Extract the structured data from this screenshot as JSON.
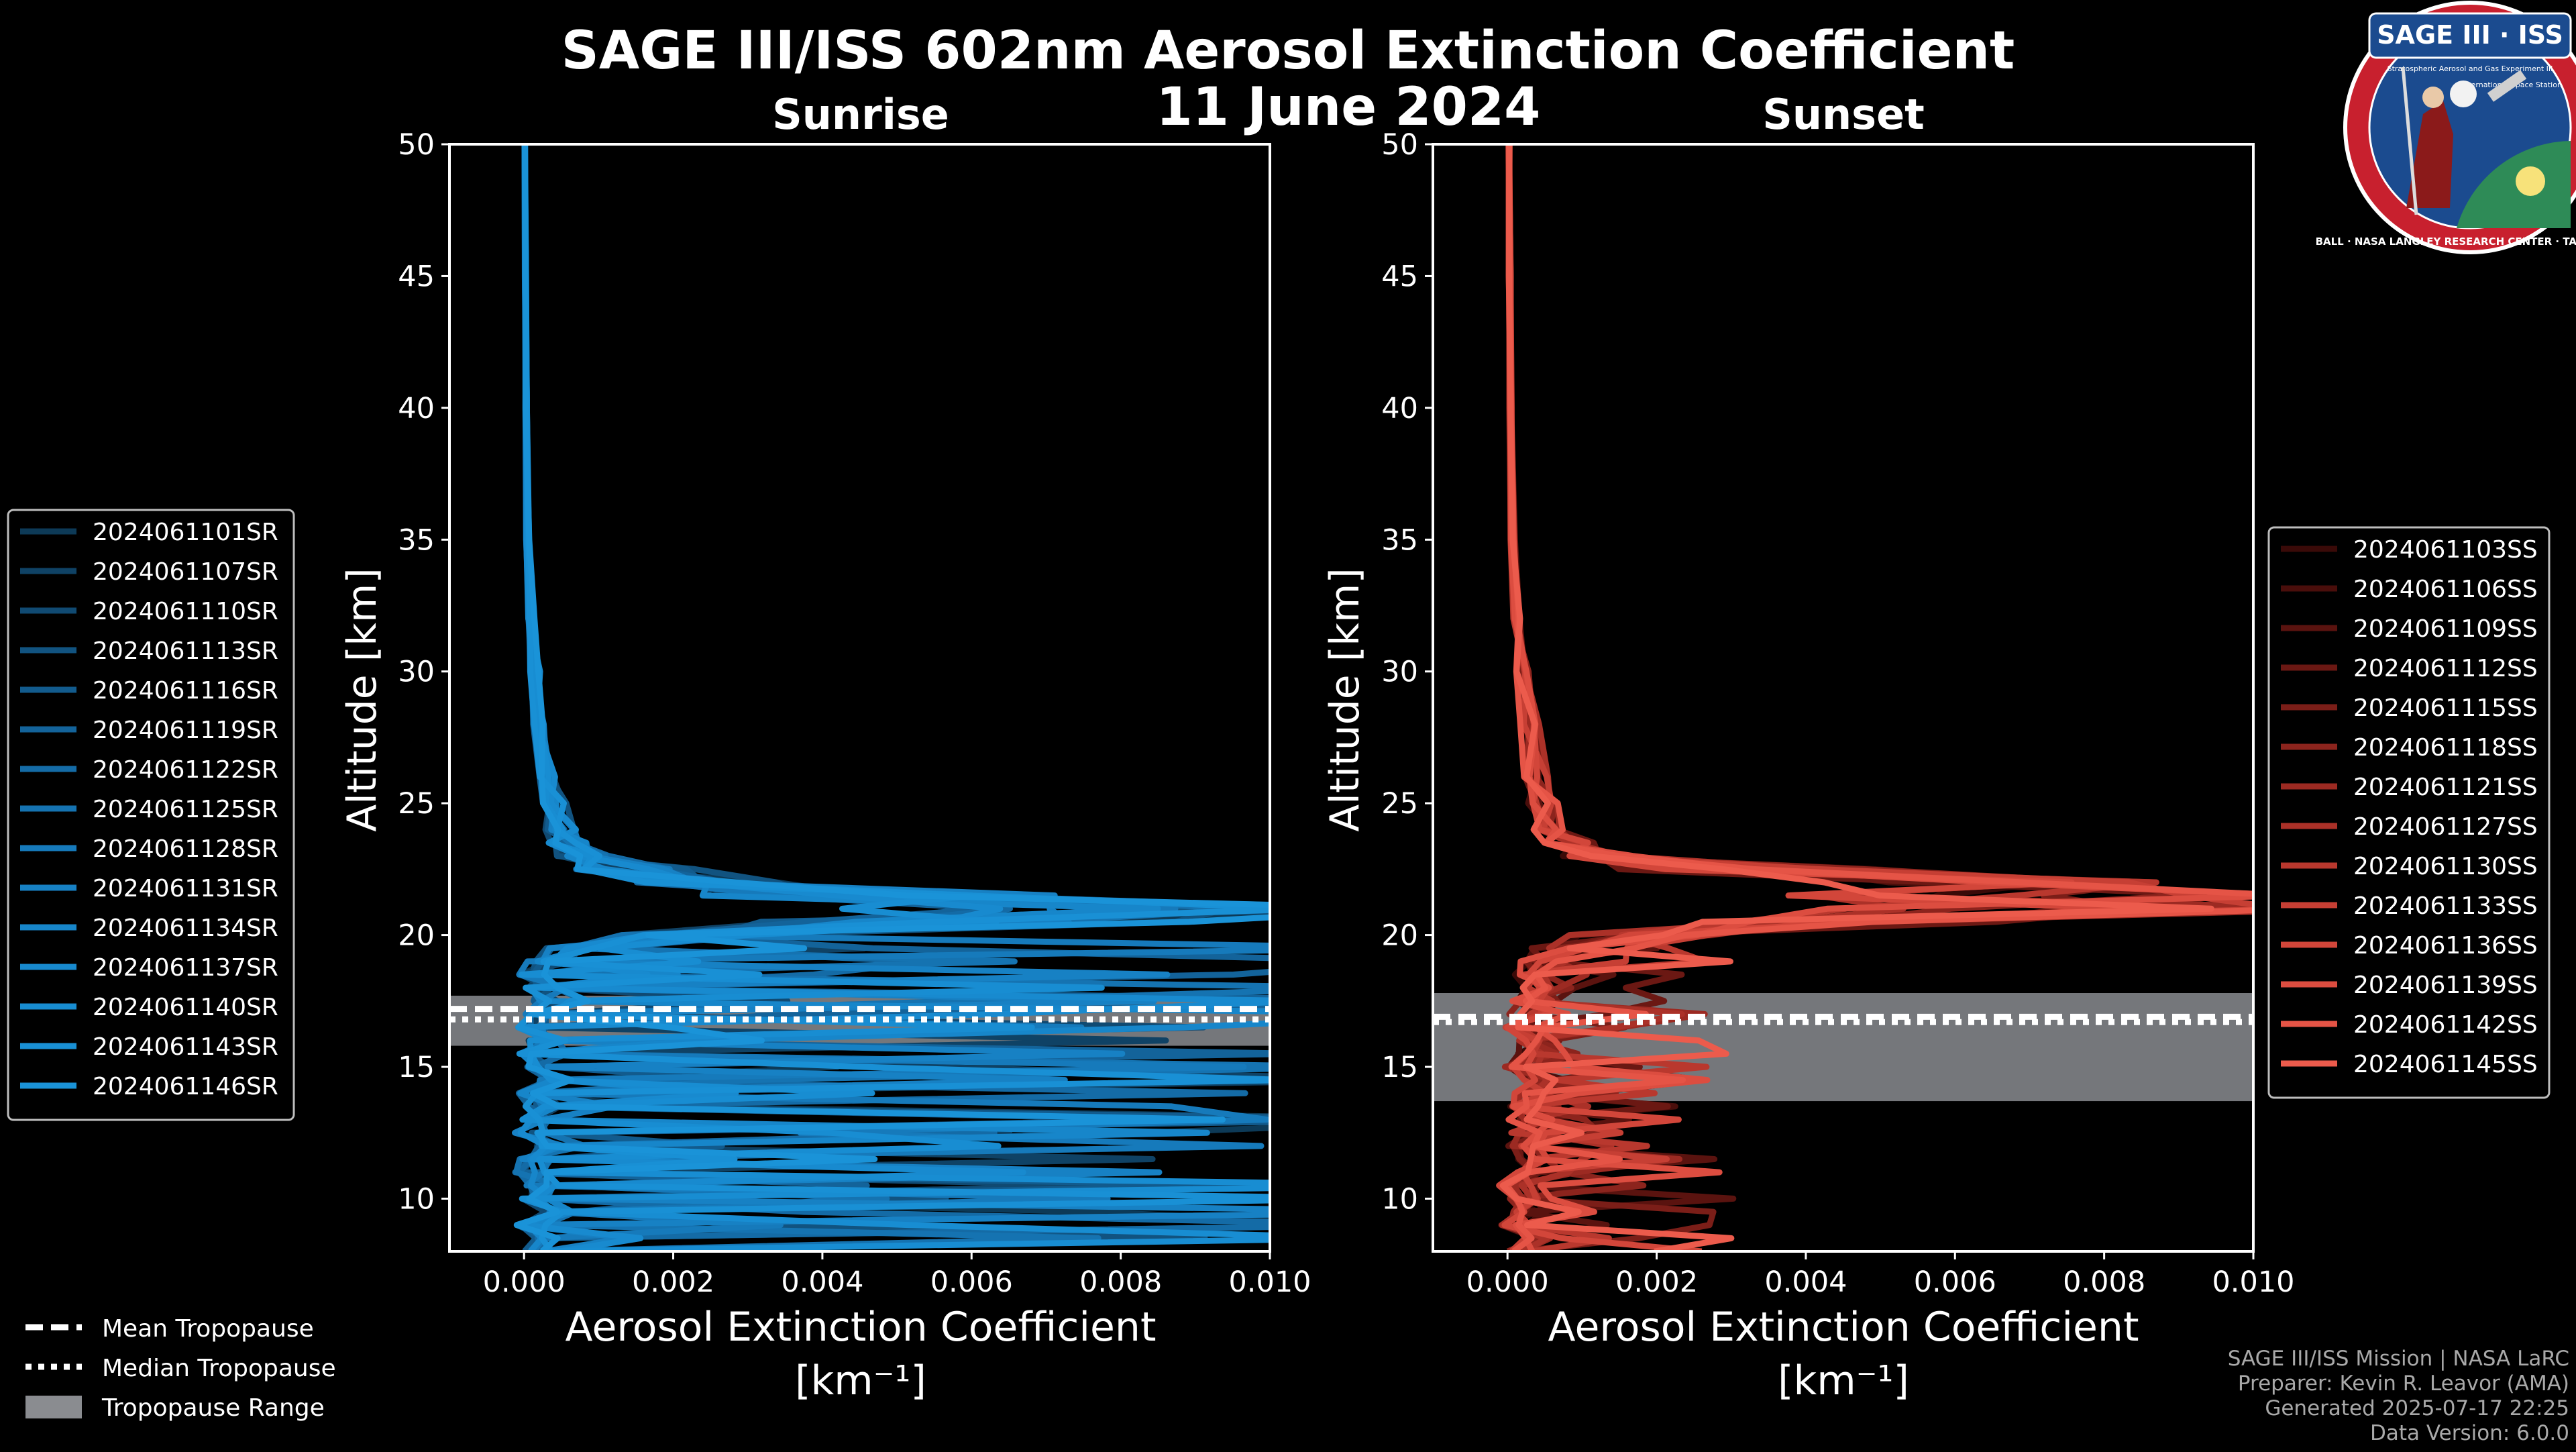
{
  "title": {
    "line1": "SAGE III/ISS 602nm Aerosol Extinction Coefficient",
    "line2": "11 June 2024"
  },
  "logo": {
    "label": "SAGE III · ISS",
    "ring_text": "BALL · NASA LANGLEY RESEARCH CENTER · TAS-I · ESA",
    "inner_text": [
      "Stratospheric Aerosol and Gas Experiment III",
      "International Space Station"
    ]
  },
  "credits": [
    "SAGE III/ISS Mission | NASA LaRC",
    "Preparer: Kevin R. Leavor (AMA)",
    "Generated 2025-07-17 22:25",
    "Data Version: 6.0.0"
  ],
  "tropopause_legend": [
    {
      "label": "Mean Tropopause",
      "style": "dashed"
    },
    {
      "label": "Median Tropopause",
      "style": "dotted"
    },
    {
      "label": "Tropopause Range",
      "style": "box"
    }
  ],
  "colors": {
    "sunrise": "#1a8fd0",
    "sunset": "#e8584a",
    "tropopause_range": "#8a8c90",
    "background": "#000000"
  },
  "chart_data": [
    {
      "type": "line",
      "panel": "sunrise",
      "title": "Sunrise",
      "xlabel": "Aerosol Extinction Coefficient",
      "xunit": "[km⁻¹]",
      "ylabel": "Altitude [km]",
      "xlim": [
        -0.001,
        0.01
      ],
      "ylim": [
        8,
        50
      ],
      "xticks": [
        "0.000",
        "0.002",
        "0.004",
        "0.006",
        "0.008",
        "0.010"
      ],
      "yticks": [
        "10",
        "15",
        "20",
        "25",
        "30",
        "35",
        "40",
        "45",
        "50"
      ],
      "legend_position": "outside-left",
      "tropopause": {
        "mean": 17.2,
        "median": 16.8,
        "range": [
          15.8,
          17.7
        ]
      },
      "series": [
        {
          "name": "2024061101SR",
          "color": "#0d3a57"
        },
        {
          "name": "2024061107SR",
          "color": "#0f4265"
        },
        {
          "name": "2024061110SR",
          "color": "#104a72"
        },
        {
          "name": "2024061113SR",
          "color": "#115380"
        },
        {
          "name": "2024061116SR",
          "color": "#125b8d"
        },
        {
          "name": "2024061119SR",
          "color": "#13639a"
        },
        {
          "name": "2024061122SR",
          "color": "#146ba6"
        },
        {
          "name": "2024061125SR",
          "color": "#1573b1"
        },
        {
          "name": "2024061128SR",
          "color": "#167abb"
        },
        {
          "name": "2024061131SR",
          "color": "#1781c4"
        },
        {
          "name": "2024061134SR",
          "color": "#1786ca"
        },
        {
          "name": "2024061137SR",
          "color": "#188acf"
        },
        {
          "name": "2024061140SR",
          "color": "#188dd2"
        },
        {
          "name": "2024061143SR",
          "color": "#1990d5"
        },
        {
          "name": "2024061146SR",
          "color": "#1a93d8"
        }
      ],
      "profile": {
        "alt": [
          50,
          45,
          40,
          35,
          32,
          30,
          28,
          26,
          25,
          24,
          23.5,
          23,
          22.5,
          22,
          21.5,
          21,
          20.5,
          20,
          19.5,
          19,
          18.5,
          18,
          17.5,
          17,
          16.5,
          16,
          15.5,
          15,
          14.5,
          14,
          13.5,
          13,
          12.5,
          12,
          11.5,
          11,
          10.5,
          10,
          9.5,
          9,
          8.5,
          8
        ],
        "base": [
          1e-05,
          2e-05,
          3e-05,
          5e-05,
          0.0001,
          0.00015,
          0.0002,
          0.0003,
          0.0004,
          0.0005,
          0.0006,
          0.0008,
          0.0012,
          0.0025,
          0.004,
          0.007,
          0.005,
          0.002,
          0.0008,
          0.0003,
          0.0001,
          0.0003,
          0.0005,
          0.0002,
          0.0001,
          0.0003,
          0.0001,
          0.0002,
          0.0004,
          0.0001,
          0.0003,
          0.0002,
          0.0001,
          0.0004,
          0.0002,
          0.0001,
          0.0003,
          0.0002,
          0.0004,
          0.0001,
          0.0003,
          0.0002
        ]
      }
    },
    {
      "type": "line",
      "panel": "sunset",
      "title": "Sunset",
      "xlabel": "Aerosol Extinction Coefficient",
      "xunit": "[km⁻¹]",
      "ylabel": "Altitude [km]",
      "xlim": [
        -0.001,
        0.01
      ],
      "ylim": [
        8,
        50
      ],
      "xticks": [
        "0.000",
        "0.002",
        "0.004",
        "0.006",
        "0.008",
        "0.010"
      ],
      "yticks": [
        "10",
        "15",
        "20",
        "25",
        "30",
        "35",
        "40",
        "45",
        "50"
      ],
      "legend_position": "outside-right",
      "tropopause": {
        "mean": 16.9,
        "median": 16.7,
        "range": [
          13.7,
          17.8
        ]
      },
      "series": [
        {
          "name": "2024061103SS",
          "color": "#3a0a08"
        },
        {
          "name": "2024061106SS",
          "color": "#4a0e0b"
        },
        {
          "name": "2024061109SS",
          "color": "#5a130f"
        },
        {
          "name": "2024061112SS",
          "color": "#6b1813"
        },
        {
          "name": "2024061115SS",
          "color": "#7b1e18"
        },
        {
          "name": "2024061118SS",
          "color": "#8c241d"
        },
        {
          "name": "2024061121SS",
          "color": "#9c2a22"
        },
        {
          "name": "2024061127SS",
          "color": "#ab3128"
        },
        {
          "name": "2024061130SS",
          "color": "#b9382e"
        },
        {
          "name": "2024061133SS",
          "color": "#c63f34"
        },
        {
          "name": "2024061136SS",
          "color": "#d2463a"
        },
        {
          "name": "2024061139SS",
          "color": "#dc4d40"
        },
        {
          "name": "2024061142SS",
          "color": "#e55446"
        },
        {
          "name": "2024061145SS",
          "color": "#ec5b4c"
        }
      ],
      "profile": {
        "alt": [
          50,
          45,
          40,
          35,
          32,
          30,
          28,
          26,
          25,
          24,
          23.5,
          23,
          22.5,
          22,
          21.5,
          21,
          20.5,
          20,
          19.5,
          19,
          18.5,
          18,
          17.5,
          17,
          16.5,
          16,
          15.5,
          15,
          14.5,
          14,
          13.5,
          13,
          12.5,
          12,
          11.5,
          11,
          10.5,
          10,
          9.5,
          9,
          8.5,
          8
        ],
        "base": [
          2e-05,
          3e-05,
          4e-05,
          7e-05,
          0.00012,
          0.0002,
          0.0003,
          0.0004,
          0.0005,
          0.0006,
          0.0008,
          0.0012,
          0.0028,
          0.005,
          0.006,
          0.007,
          0.004,
          0.0015,
          0.0006,
          0.0004,
          0.0003,
          0.0005,
          0.0004,
          0.0003,
          0.0002,
          0.0004,
          0.0003,
          0.0002,
          0.0005,
          0.0003,
          0.0002,
          0.0004,
          0.0003,
          0.0002,
          0.0004,
          0.0003,
          0.0001,
          0.0002,
          0.0003,
          0.0001,
          0.0004,
          0.0002
        ]
      }
    }
  ]
}
